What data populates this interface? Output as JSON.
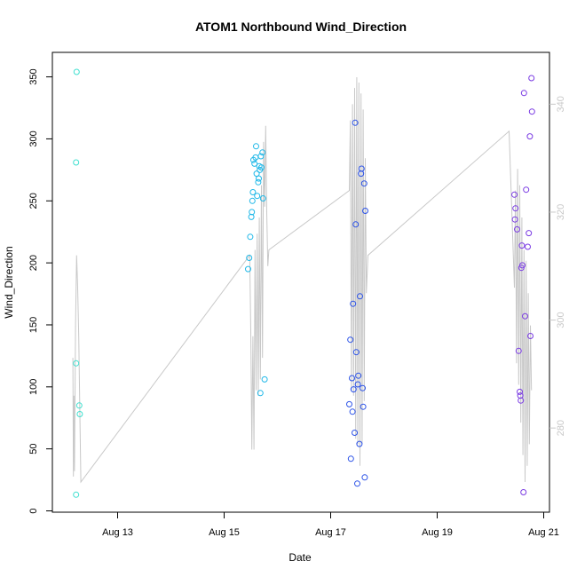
{
  "chart_data": {
    "type": "scatter",
    "title": "ATOM1 Northbound Wind_Direction",
    "xlabel": "Date",
    "ylabel": "Wind_Direction",
    "x_ticks": [
      "Aug 13",
      "Aug 15",
      "Aug 17",
      "Aug 19",
      "Aug 21"
    ],
    "x_tick_values": [
      13,
      15,
      17,
      19,
      21
    ],
    "xlim": [
      12.05,
      21.05
    ],
    "ylim": [
      0,
      360
    ],
    "y_ticks": [
      0,
      50,
      100,
      150,
      200,
      250,
      300,
      350
    ],
    "right_axis": {
      "color": "#c8c8c8",
      "ticks": [
        280,
        300,
        320,
        340
      ],
      "ylim": [
        264.4,
        349.6
      ]
    },
    "grid": false,
    "series": [
      {
        "color": "#40e0d0",
        "points": [
          [
            12.23,
            354
          ],
          [
            12.22,
            281
          ],
          [
            12.22,
            119
          ],
          [
            12.28,
            85
          ],
          [
            12.29,
            78
          ],
          [
            12.22,
            13
          ]
        ]
      },
      {
        "color": "#1fb8e8",
        "points": [
          [
            15.45,
            195
          ],
          [
            15.47,
            204
          ],
          [
            15.49,
            221
          ],
          [
            15.51,
            237
          ],
          [
            15.52,
            241
          ],
          [
            15.53,
            250
          ],
          [
            15.54,
            257
          ],
          [
            15.55,
            283
          ],
          [
            15.57,
            280
          ],
          [
            15.59,
            285
          ],
          [
            15.6,
            294
          ],
          [
            15.61,
            272
          ],
          [
            15.62,
            254
          ],
          [
            15.64,
            265
          ],
          [
            15.65,
            268
          ],
          [
            15.66,
            278
          ],
          [
            15.67,
            275
          ],
          [
            15.69,
            286
          ],
          [
            15.7,
            277
          ],
          [
            15.72,
            289
          ],
          [
            15.73,
            252
          ],
          [
            15.68,
            95
          ],
          [
            15.76,
            106
          ]
        ]
      },
      {
        "color": "#2b52e8",
        "points": [
          [
            17.35,
            86
          ],
          [
            17.37,
            138
          ],
          [
            17.38,
            42
          ],
          [
            17.4,
            107
          ],
          [
            17.41,
            80
          ],
          [
            17.42,
            167
          ],
          [
            17.43,
            98
          ],
          [
            17.45,
            63
          ],
          [
            17.46,
            313
          ],
          [
            17.47,
            231
          ],
          [
            17.48,
            128
          ],
          [
            17.5,
            22
          ],
          [
            17.51,
            102
          ],
          [
            17.52,
            109
          ],
          [
            17.54,
            54
          ],
          [
            17.55,
            173
          ],
          [
            17.57,
            272
          ],
          [
            17.58,
            276
          ],
          [
            17.6,
            99
          ],
          [
            17.61,
            84
          ],
          [
            17.63,
            264
          ],
          [
            17.64,
            27
          ],
          [
            17.65,
            242
          ]
        ]
      },
      {
        "color": "#7a3be3",
        "points": [
          [
            20.45,
            255
          ],
          [
            20.46,
            235
          ],
          [
            20.47,
            244
          ],
          [
            20.5,
            227
          ],
          [
            20.53,
            129
          ],
          [
            20.55,
            96
          ],
          [
            20.56,
            93
          ],
          [
            20.57,
            89
          ],
          [
            20.58,
            196
          ],
          [
            20.59,
            214
          ],
          [
            20.6,
            198
          ],
          [
            20.62,
            15
          ],
          [
            20.63,
            337
          ],
          [
            20.65,
            157
          ],
          [
            20.67,
            259
          ],
          [
            20.7,
            213
          ],
          [
            20.72,
            224
          ],
          [
            20.74,
            302
          ],
          [
            20.75,
            141
          ],
          [
            20.77,
            349
          ],
          [
            20.78,
            322
          ]
        ]
      }
    ],
    "line_series": {
      "color": "#c8c8c8",
      "axis": "right",
      "points": [
        [
          12.16,
          293
        ],
        [
          12.17,
          271
        ],
        [
          12.18,
          286
        ],
        [
          12.19,
          272
        ],
        [
          12.21,
          299
        ],
        [
          12.23,
          312
        ],
        [
          12.25,
          306
        ],
        [
          12.27,
          297
        ],
        [
          12.31,
          270
        ],
        [
          15.48,
          312
        ],
        [
          15.5,
          298
        ],
        [
          15.52,
          276
        ],
        [
          15.54,
          297
        ],
        [
          15.56,
          276
        ],
        [
          15.58,
          313
        ],
        [
          15.6,
          287
        ],
        [
          15.62,
          316
        ],
        [
          15.64,
          286
        ],
        [
          15.66,
          319
        ],
        [
          15.68,
          289
        ],
        [
          15.7,
          325
        ],
        [
          15.72,
          293
        ],
        [
          15.74,
          333
        ],
        [
          15.76,
          321
        ],
        [
          15.78,
          336
        ],
        [
          15.8,
          320
        ],
        [
          15.82,
          310
        ],
        [
          15.84,
          313
        ],
        [
          17.35,
          324
        ],
        [
          17.37,
          337
        ],
        [
          17.39,
          287
        ],
        [
          17.41,
          340
        ],
        [
          17.43,
          286
        ],
        [
          17.45,
          343
        ],
        [
          17.47,
          278
        ],
        [
          17.49,
          345
        ],
        [
          17.51,
          277
        ],
        [
          17.53,
          344
        ],
        [
          17.55,
          273
        ],
        [
          17.57,
          342
        ],
        [
          17.59,
          277
        ],
        [
          17.61,
          339
        ],
        [
          17.63,
          285
        ],
        [
          17.65,
          330
        ],
        [
          17.67,
          305
        ],
        [
          17.7,
          312
        ],
        [
          20.35,
          335
        ],
        [
          20.45,
          306
        ],
        [
          20.47,
          324
        ],
        [
          20.49,
          292
        ],
        [
          20.51,
          328
        ],
        [
          20.53,
          288
        ],
        [
          20.55,
          325
        ],
        [
          20.57,
          281
        ],
        [
          20.59,
          319
        ],
        [
          20.61,
          275
        ],
        [
          20.63,
          313
        ],
        [
          20.65,
          270
        ],
        [
          20.67,
          311
        ],
        [
          20.69,
          273
        ],
        [
          20.71,
          305
        ],
        [
          20.73,
          277
        ],
        [
          20.75,
          299
        ],
        [
          20.77,
          287
        ]
      ]
    },
    "legend": "none"
  }
}
